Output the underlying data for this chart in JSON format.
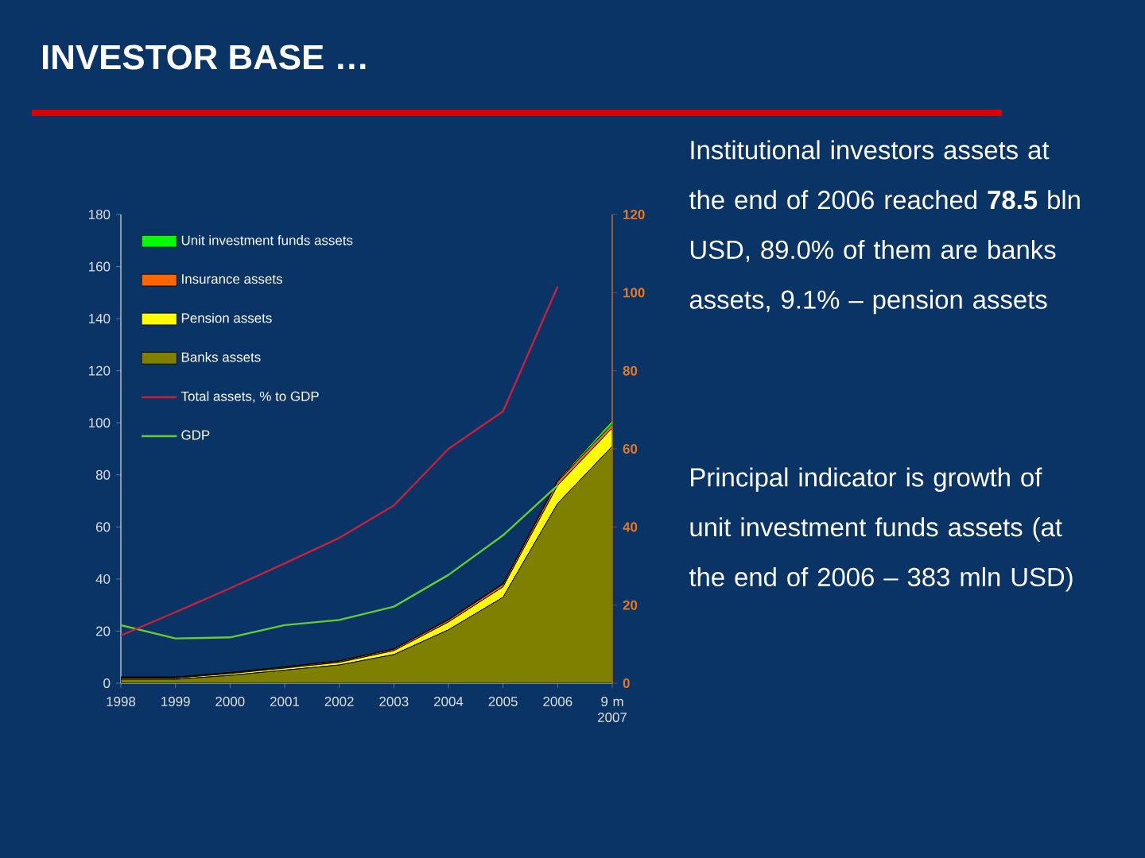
{
  "chart_data": {
    "type": "area",
    "stacked": true,
    "title": "INVESTOR BASE …",
    "categories": [
      "1998",
      "1999",
      "2000",
      "2001",
      "2002",
      "2003",
      "2004",
      "2005",
      "2006",
      "9 m 2007"
    ],
    "ylim": [
      0,
      180
    ],
    "yticks": [
      0,
      20,
      40,
      60,
      80,
      100,
      120,
      140,
      160,
      180
    ],
    "y2lim": [
      0,
      120
    ],
    "y2ticks": [
      0,
      20,
      40,
      60,
      80,
      100,
      120
    ],
    "legend": "top left",
    "series": [
      {
        "name": "Banks assets",
        "color": "#808000",
        "values": [
          1.5,
          1.5,
          3,
          5,
          7,
          11,
          20.5,
          33,
          69,
          91
        ]
      },
      {
        "name": "Pension assets",
        "color": "#ffff00",
        "values": [
          0.5,
          0.5,
          0.7,
          0.8,
          1,
          1.5,
          3,
          4,
          7,
          7
        ]
      },
      {
        "name": "Insurance assets",
        "color": "#ff6600",
        "values": [
          0.3,
          0.3,
          0.3,
          0.4,
          0.5,
          0.6,
          0.8,
          1,
          1.5,
          1.5
        ]
      },
      {
        "name": "Unit investment funds assets",
        "color": "#00ff00",
        "values": [
          0.1,
          0.1,
          0.1,
          0.1,
          0.1,
          0.1,
          0.2,
          0.3,
          0.4,
          1.5
        ]
      },
      {
        "name": "Total assets, % to GDP",
        "type": "line",
        "axis": "y2",
        "color": "#c8203c",
        "values": [
          12.2,
          18.2,
          24.3,
          30.7,
          37.2,
          45.5,
          60,
          69.6,
          101.6,
          null
        ]
      },
      {
        "name": "GDP",
        "type": "line",
        "color": "#66cc33",
        "values": [
          22.3,
          17.2,
          17.6,
          22.3,
          24.3,
          29.4,
          41.6,
          56.8,
          76,
          null
        ]
      }
    ],
    "annotations": [
      "Institutional investors assets at the end of 2006 reached **78.5** bln USD, 89.0% of them are banks assets, 9.1% – pension assets",
      "Principal indicator is growth of unit investment funds assets (at the end of 2006 – 383 mln USD)"
    ]
  }
}
